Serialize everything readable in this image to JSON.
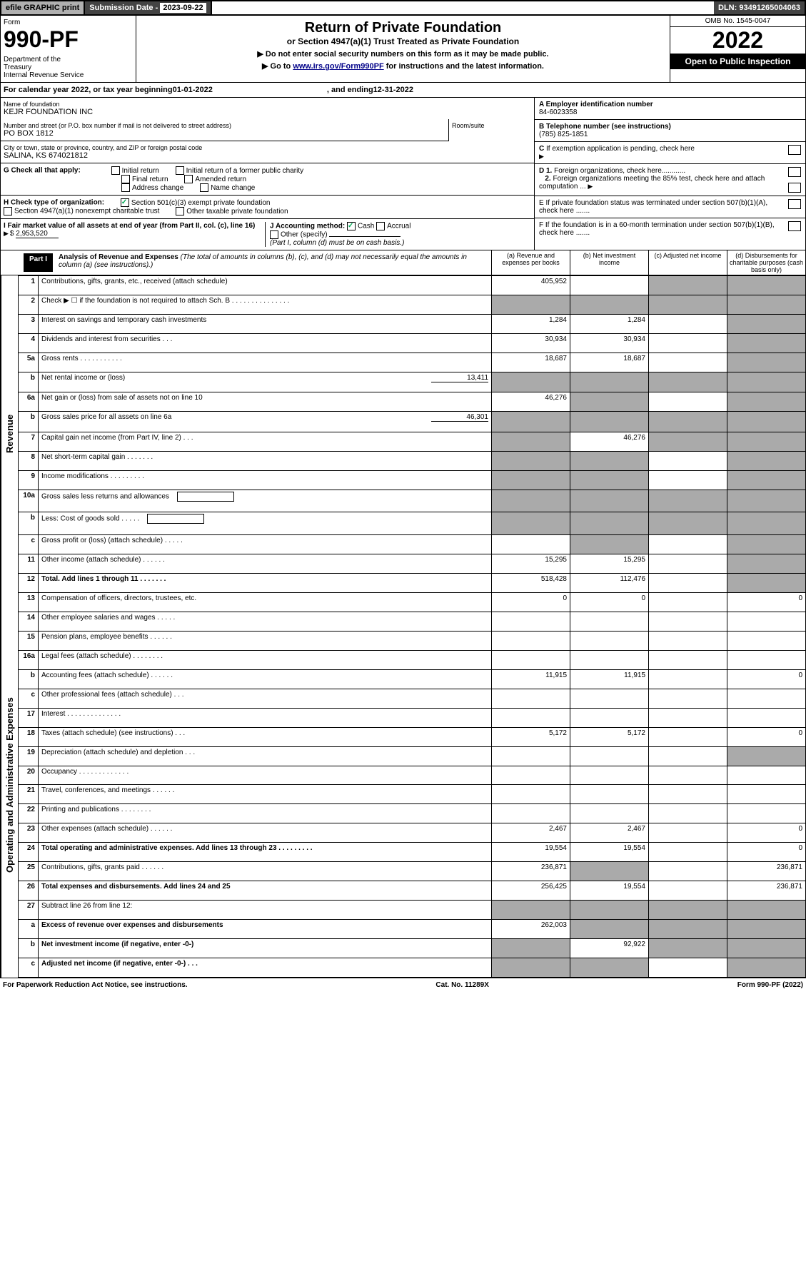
{
  "topbar": {
    "efile": "efile GRAPHIC print",
    "sub_label": "Submission Date - ",
    "sub_date": "2023-09-22",
    "dln": "DLN: 93491265004063"
  },
  "header": {
    "form_label": "Form",
    "form_num": "990-PF",
    "dept": "Department of the Treasury\nInternal Revenue Service",
    "title": "Return of Private Foundation",
    "subtitle": "or Section 4947(a)(1) Trust Treated as Private Foundation",
    "instr1": "▶ Do not enter social security numbers on this form as it may be made public.",
    "instr2_pre": "▶ Go to ",
    "instr2_link": "www.irs.gov/Form990PF",
    "instr2_post": " for instructions and the latest information.",
    "omb": "OMB No. 1545-0047",
    "year": "2022",
    "open": "Open to Public Inspection"
  },
  "calyear": {
    "pre": "For calendar year 2022, or tax year beginning ",
    "begin": "01-01-2022",
    "mid": " , and ending ",
    "end": "12-31-2022"
  },
  "foundation": {
    "name_label": "Name of foundation",
    "name": "KEJR FOUNDATION INC",
    "addr_label": "Number and street (or P.O. box number if mail is not delivered to street address)",
    "addr": "PO BOX 1812",
    "room_label": "Room/suite",
    "city_label": "City or town, state or province, country, and ZIP or foreign postal code",
    "city": "SALINA, KS  674021812",
    "ein_label": "A Employer identification number",
    "ein": "84-6023358",
    "phone_label": "B Telephone number (see instructions)",
    "phone": "(785) 825-1851",
    "c_label": "C If exemption application is pending, check here",
    "d1": "D 1. Foreign organizations, check here............",
    "d2": "2. Foreign organizations meeting the 85% test, check here and attach computation ...",
    "e": "E  If private foundation status was terminated under section 507(b)(1)(A), check here .......",
    "f": "F  If the foundation is in a 60-month termination under section 507(b)(1)(B), check here .......",
    "g_label": "G Check all that apply:",
    "g_opts": [
      "Initial return",
      "Initial return of a former public charity",
      "Final return",
      "Amended return",
      "Address change",
      "Name change"
    ],
    "h_label": "H Check type of organization:",
    "h_opts": [
      "Section 501(c)(3) exempt private foundation",
      "Section 4947(a)(1) nonexempt charitable trust",
      "Other taxable private foundation"
    ],
    "i_label": "I Fair market value of all assets at end of year (from Part II, col. (c), line 16)",
    "i_val": "2,953,520",
    "j_label": "J Accounting method:",
    "j_opts": [
      "Cash",
      "Accrual",
      "Other (specify)"
    ],
    "j_note": "(Part I, column (d) must be on cash basis.)"
  },
  "part1": {
    "label": "Part I",
    "title": "Analysis of Revenue and Expenses",
    "title_note": " (The total of amounts in columns (b), (c), and (d) may not necessarily equal the amounts in column (a) (see instructions).)",
    "cols": {
      "a": "(a) Revenue and expenses per books",
      "b": "(b) Net investment income",
      "c": "(c) Adjusted net income",
      "d": "(d) Disbursements for charitable purposes (cash basis only)"
    }
  },
  "sidebars": {
    "revenue": "Revenue",
    "expenses": "Operating and Administrative Expenses"
  },
  "rows": [
    {
      "n": "1",
      "desc": "Contributions, gifts, grants, etc., received (attach schedule)",
      "a": "405,952",
      "b": "",
      "c": "shaded",
      "d": "shaded"
    },
    {
      "n": "2",
      "desc": "Check ▶ ☐ if the foundation is not required to attach Sch. B   .   .   .   .   .   .   .   .   .   .   .   .   .   .   .",
      "a": "shaded",
      "b": "shaded",
      "c": "shaded",
      "d": "shaded"
    },
    {
      "n": "3",
      "desc": "Interest on savings and temporary cash investments",
      "a": "1,284",
      "b": "1,284",
      "c": "",
      "d": "shaded"
    },
    {
      "n": "4",
      "desc": "Dividends and interest from securities   .   .   .",
      "a": "30,934",
      "b": "30,934",
      "c": "",
      "d": "shaded"
    },
    {
      "n": "5a",
      "desc": "Gross rents   .   .   .   .   .   .   .   .   .   .   .",
      "a": "18,687",
      "b": "18,687",
      "c": "",
      "d": "shaded"
    },
    {
      "n": "b",
      "desc": "Net rental income or (loss)",
      "inline": "13,411",
      "a": "shaded",
      "b": "shaded",
      "c": "shaded",
      "d": "shaded"
    },
    {
      "n": "6a",
      "desc": "Net gain or (loss) from sale of assets not on line 10",
      "a": "46,276",
      "b": "shaded",
      "c": "",
      "d": "shaded"
    },
    {
      "n": "b",
      "desc": "Gross sales price for all assets on line 6a",
      "inline": "46,301",
      "a": "shaded",
      "b": "shaded",
      "c": "shaded",
      "d": "shaded"
    },
    {
      "n": "7",
      "desc": "Capital gain net income (from Part IV, line 2)   .   .   .",
      "a": "shaded",
      "b": "46,276",
      "c": "shaded",
      "d": "shaded"
    },
    {
      "n": "8",
      "desc": "Net short-term capital gain   .   .   .   .   .   .   .",
      "a": "shaded",
      "b": "shaded",
      "c": "",
      "d": "shaded"
    },
    {
      "n": "9",
      "desc": "Income modifications   .   .   .   .   .   .   .   .   .",
      "a": "shaded",
      "b": "shaded",
      "c": "",
      "d": "shaded"
    },
    {
      "n": "10a",
      "desc": "Gross sales less returns and allowances",
      "inlinebox": true,
      "a": "shaded",
      "b": "shaded",
      "c": "shaded",
      "d": "shaded"
    },
    {
      "n": "b",
      "desc": "Less: Cost of goods sold   .   .   .   .   .",
      "inlinebox": true,
      "a": "shaded",
      "b": "shaded",
      "c": "shaded",
      "d": "shaded"
    },
    {
      "n": "c",
      "desc": "Gross profit or (loss) (attach schedule)   .   .   .   .   .",
      "a": "",
      "b": "shaded",
      "c": "",
      "d": "shaded"
    },
    {
      "n": "11",
      "desc": "Other income (attach schedule)   .   .   .   .   .   .",
      "a": "15,295",
      "b": "15,295",
      "c": "",
      "d": "shaded"
    },
    {
      "n": "12",
      "desc": "Total. Add lines 1 through 11   .   .   .   .   .   .   .",
      "bold": true,
      "a": "518,428",
      "b": "112,476",
      "c": "",
      "d": "shaded"
    },
    {
      "n": "13",
      "desc": "Compensation of officers, directors, trustees, etc.",
      "a": "0",
      "b": "0",
      "c": "",
      "d": "0"
    },
    {
      "n": "14",
      "desc": "Other employee salaries and wages   .   .   .   .   .",
      "a": "",
      "b": "",
      "c": "",
      "d": ""
    },
    {
      "n": "15",
      "desc": "Pension plans, employee benefits   .   .   .   .   .   .",
      "a": "",
      "b": "",
      "c": "",
      "d": ""
    },
    {
      "n": "16a",
      "desc": "Legal fees (attach schedule)   .   .   .   .   .   .   .   .",
      "a": "",
      "b": "",
      "c": "",
      "d": ""
    },
    {
      "n": "b",
      "desc": "Accounting fees (attach schedule)   .   .   .   .   .   .",
      "a": "11,915",
      "b": "11,915",
      "c": "",
      "d": "0"
    },
    {
      "n": "c",
      "desc": "Other professional fees (attach schedule)   .   .   .",
      "a": "",
      "b": "",
      "c": "",
      "d": ""
    },
    {
      "n": "17",
      "desc": "Interest   .   .   .   .   .   .   .   .   .   .   .   .   .   .",
      "a": "",
      "b": "",
      "c": "",
      "d": ""
    },
    {
      "n": "18",
      "desc": "Taxes (attach schedule) (see instructions)   .   .   .",
      "a": "5,172",
      "b": "5,172",
      "c": "",
      "d": "0"
    },
    {
      "n": "19",
      "desc": "Depreciation (attach schedule) and depletion   .   .   .",
      "a": "",
      "b": "",
      "c": "",
      "d": "shaded"
    },
    {
      "n": "20",
      "desc": "Occupancy   .   .   .   .   .   .   .   .   .   .   .   .   .",
      "a": "",
      "b": "",
      "c": "",
      "d": ""
    },
    {
      "n": "21",
      "desc": "Travel, conferences, and meetings   .   .   .   .   .   .",
      "a": "",
      "b": "",
      "c": "",
      "d": ""
    },
    {
      "n": "22",
      "desc": "Printing and publications   .   .   .   .   .   .   .   .",
      "a": "",
      "b": "",
      "c": "",
      "d": ""
    },
    {
      "n": "23",
      "desc": "Other expenses (attach schedule)   .   .   .   .   .   .",
      "a": "2,467",
      "b": "2,467",
      "c": "",
      "d": "0"
    },
    {
      "n": "24",
      "desc": "Total operating and administrative expenses. Add lines 13 through 23   .   .   .   .   .   .   .   .   .",
      "bold": true,
      "a": "19,554",
      "b": "19,554",
      "c": "",
      "d": "0"
    },
    {
      "n": "25",
      "desc": "Contributions, gifts, grants paid   .   .   .   .   .   .",
      "a": "236,871",
      "b": "shaded",
      "c": "",
      "d": "236,871"
    },
    {
      "n": "26",
      "desc": "Total expenses and disbursements. Add lines 24 and 25",
      "bold": true,
      "a": "256,425",
      "b": "19,554",
      "c": "",
      "d": "236,871"
    },
    {
      "n": "27",
      "desc": "Subtract line 26 from line 12:",
      "a": "shaded",
      "b": "shaded",
      "c": "shaded",
      "d": "shaded"
    },
    {
      "n": "a",
      "desc": "Excess of revenue over expenses and disbursements",
      "bold": true,
      "a": "262,003",
      "b": "shaded",
      "c": "shaded",
      "d": "shaded"
    },
    {
      "n": "b",
      "desc": "Net investment income (if negative, enter -0-)",
      "bold": true,
      "a": "shaded",
      "b": "92,922",
      "c": "shaded",
      "d": "shaded"
    },
    {
      "n": "c",
      "desc": "Adjusted net income (if negative, enter -0-)   .   .   .",
      "bold": true,
      "a": "shaded",
      "b": "shaded",
      "c": "",
      "d": "shaded"
    }
  ],
  "footer": {
    "left": "For Paperwork Reduction Act Notice, see instructions.",
    "mid": "Cat. No. 11289X",
    "right": "Form 990-PF (2022)"
  }
}
